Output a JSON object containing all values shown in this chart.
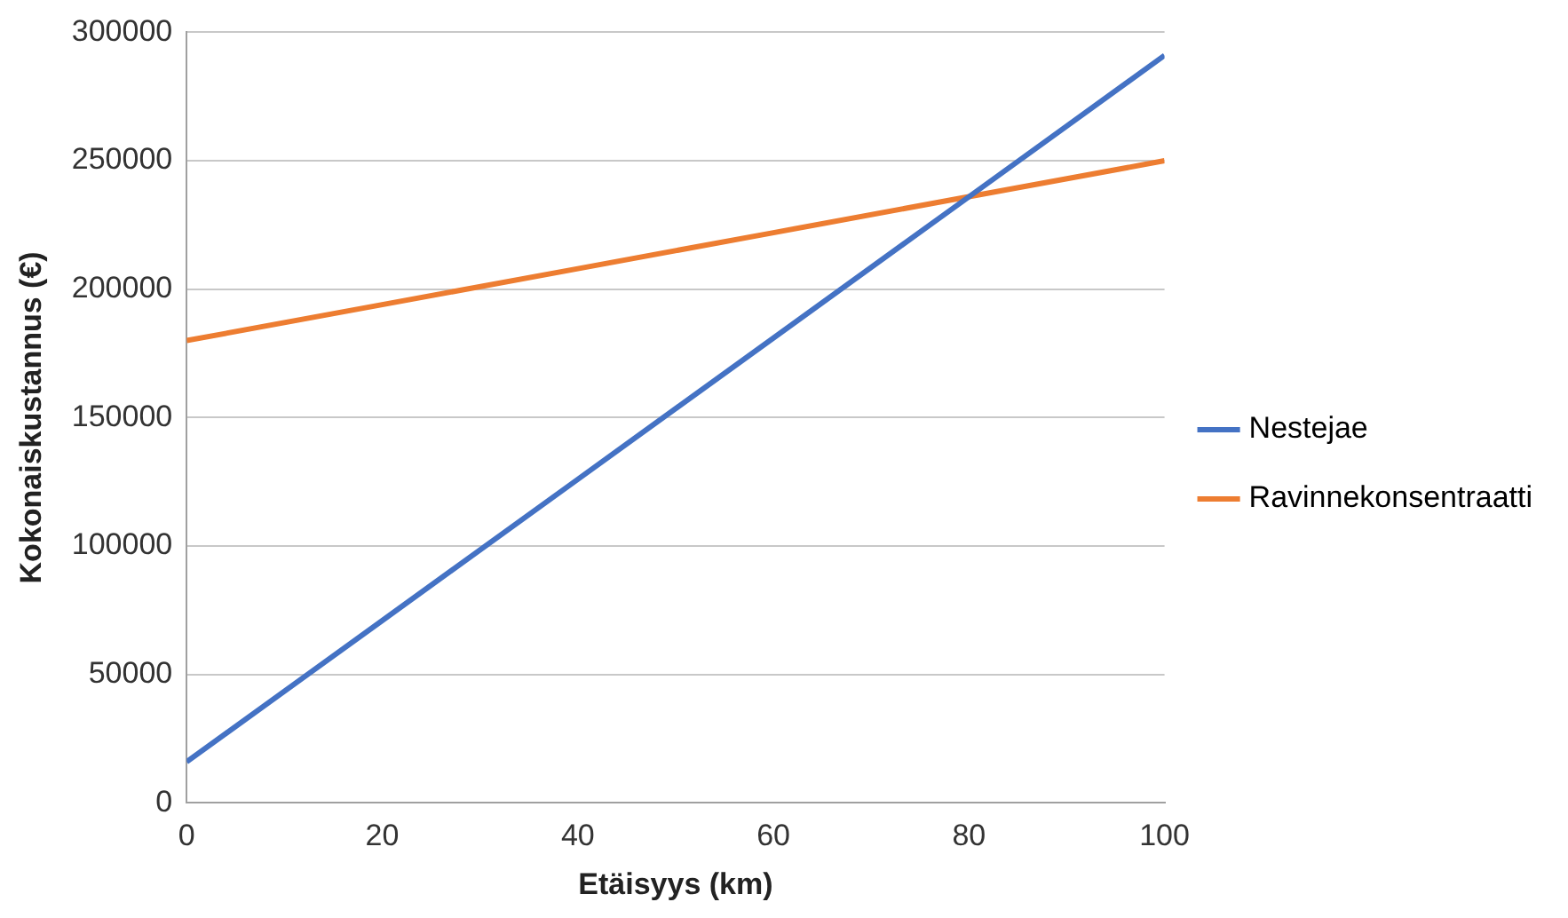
{
  "chart_data": {
    "type": "line",
    "xlabel": "Etäisyys (km)",
    "ylabel": "Kokonaiskustannus (€)",
    "x": [
      0,
      20,
      40,
      60,
      80,
      100
    ],
    "series": [
      {
        "name": "Nestejae",
        "color": "#4472c4",
        "values": [
          16000,
          71000,
          126000,
          181000,
          236000,
          291000
        ]
      },
      {
        "name": "Ravinnekonsentraatti",
        "color": "#ed7d31",
        "values": [
          180000,
          194000,
          208000,
          222000,
          236000,
          250000
        ]
      }
    ],
    "xlim": [
      0,
      100
    ],
    "xticks": [
      0,
      20,
      40,
      60,
      80,
      100
    ],
    "ylim": [
      0,
      300000
    ],
    "yticks": [
      0,
      50000,
      100000,
      150000,
      200000,
      250000,
      300000
    ],
    "grid": "y",
    "legend": "right",
    "marker": "none",
    "line_style": "solid"
  }
}
